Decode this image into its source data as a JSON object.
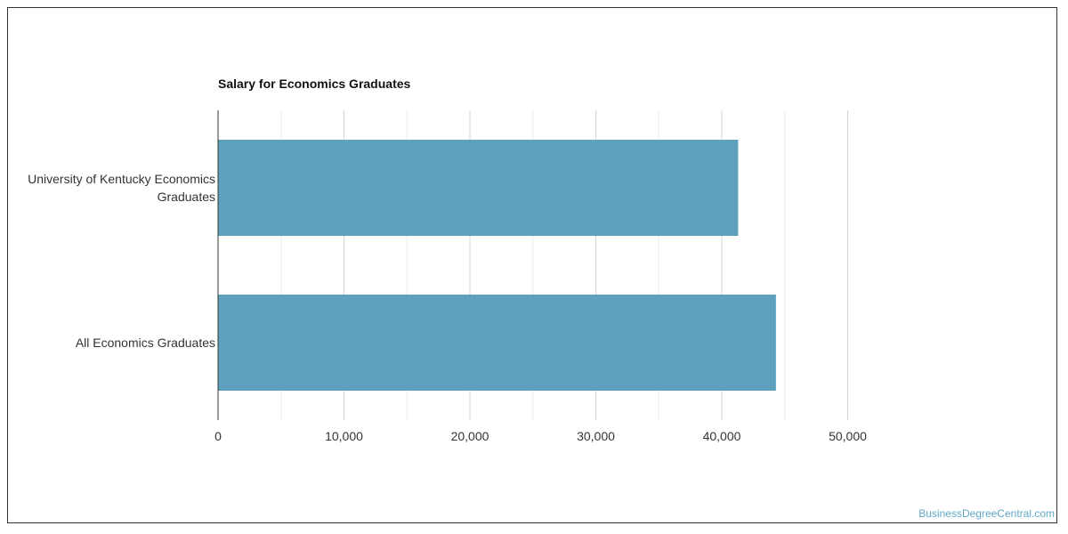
{
  "chart_data": {
    "type": "bar",
    "orientation": "horizontal",
    "title": "Salary for Economics Graduates",
    "categories": [
      [
        "University of Kentucky Economics",
        "Graduates"
      ],
      [
        "All Economics Graduates"
      ]
    ],
    "values": [
      41300,
      44300
    ],
    "xlim": [
      0,
      50000
    ],
    "xticks": [
      0,
      10000,
      20000,
      30000,
      40000,
      50000
    ],
    "xtick_labels": [
      "0",
      "10,000",
      "20,000",
      "30,000",
      "40,000",
      "50,000"
    ],
    "grid": true,
    "bar_color": "#5ea1bf"
  },
  "watermark": "BusinessDegreeCentral.com"
}
